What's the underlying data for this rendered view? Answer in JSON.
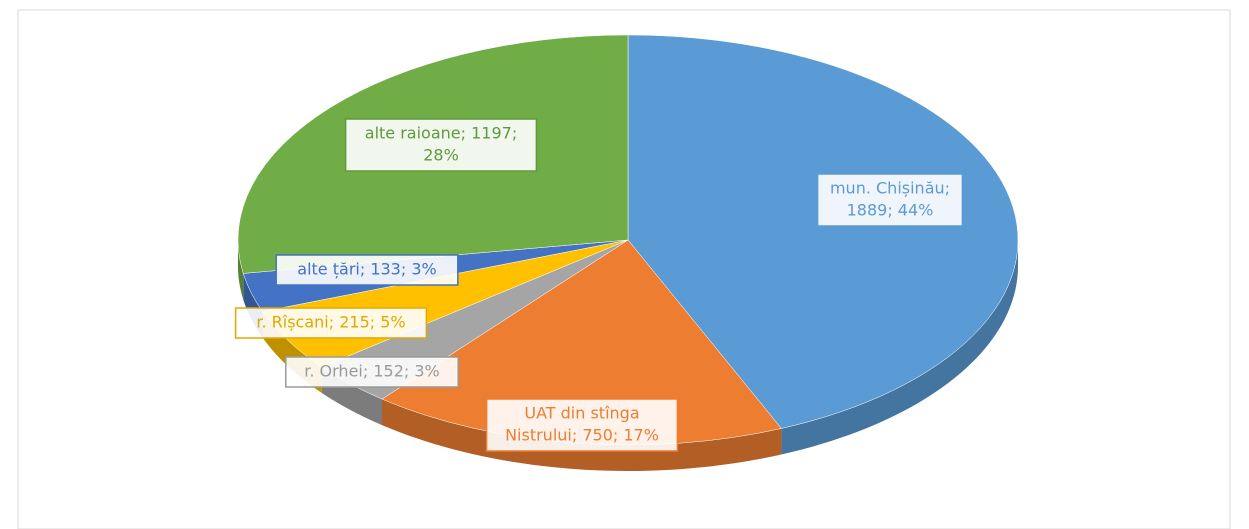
{
  "chart_data": {
    "type": "pie",
    "values": [
      1889,
      750,
      152,
      215,
      133,
      1197
    ],
    "value_labels": [
      [
        "mun. Chișinău;",
        "1889; 44%"
      ],
      [
        "UAT din stînga",
        "Nistrului; 750; 17%"
      ],
      [
        "r. Orhei; 152; 3%"
      ],
      [
        "r. Rîșcani; 215; 5%"
      ],
      [
        "alte țări; 133; 3%"
      ],
      [
        "alte raioane; 1197;",
        "28%"
      ]
    ],
    "colors": [
      "#5b9bd5",
      "#ed7d31",
      "#a5a5a5",
      "#ffc000",
      "#4472c4",
      "#70ad47"
    ]
  }
}
